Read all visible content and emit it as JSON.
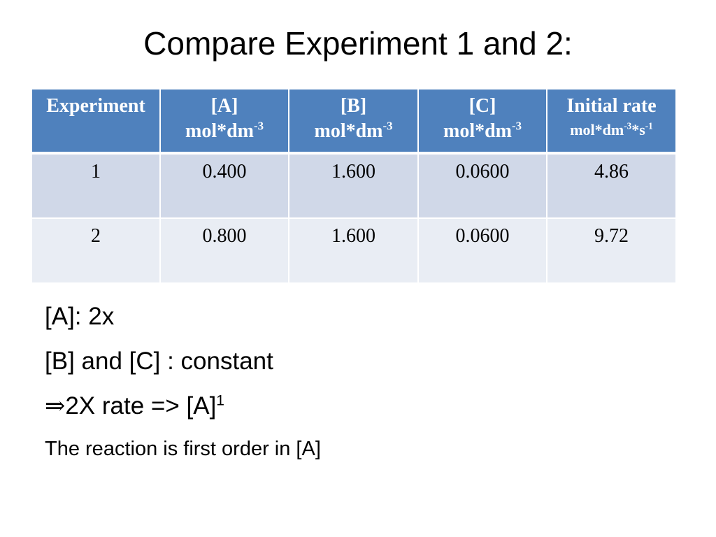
{
  "title": "Compare Experiment 1 and 2:",
  "table": {
    "headers": [
      {
        "label": "Experiment",
        "unit": "",
        "sup": "",
        "unit_tail": "",
        "sup_tail": ""
      },
      {
        "label": "[A]",
        "unit": "mol*dm",
        "sup": "-3",
        "unit_tail": "",
        "sup_tail": ""
      },
      {
        "label": "[B]",
        "unit": "mol*dm",
        "sup": "-3",
        "unit_tail": "",
        "sup_tail": ""
      },
      {
        "label": "[C]",
        "unit": "mol*dm",
        "sup": "-3",
        "unit_tail": "",
        "sup_tail": ""
      },
      {
        "label": "Initial rate",
        "unit": "mol*dm",
        "sup": "-3",
        "unit_tail": "*s",
        "sup_tail": "-1"
      }
    ],
    "rows": [
      [
        "1",
        "0.400",
        "1.600",
        "0.0600",
        "4.86"
      ],
      [
        "2",
        "0.800",
        "1.600",
        "0.0600",
        "9.72"
      ]
    ]
  },
  "notes": {
    "line1": "[A]: 2x",
    "line2": "[B] and [C] : constant",
    "line3_arrow": "⇒",
    "line3_text": "2X rate => [A]",
    "line3_sup": "1",
    "line4": "The reaction is first order in [A]"
  }
}
